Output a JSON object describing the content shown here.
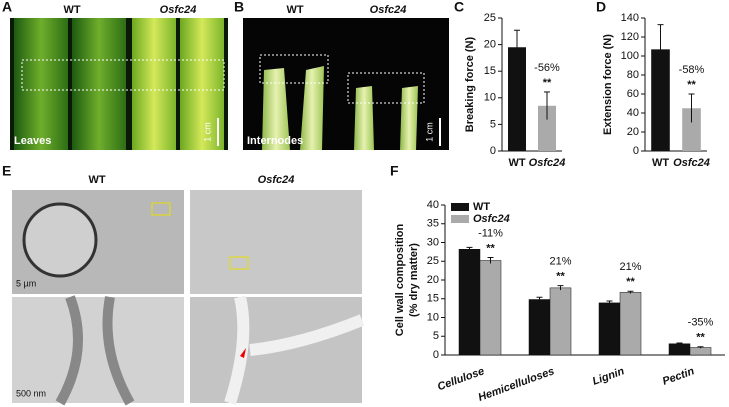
{
  "panel_labels": [
    "A",
    "B",
    "C",
    "D",
    "E",
    "F"
  ],
  "images": {
    "A": {
      "genotypes": [
        "WT",
        "Osfc24"
      ],
      "caption": "Leaves",
      "scale": "1 cm"
    },
    "B": {
      "genotypes": [
        "WT",
        "Osfc24"
      ],
      "caption": "Internodes",
      "scale": "1 cm"
    },
    "E": {
      "genotypes": [
        "WT",
        "Osfc24"
      ],
      "scales": [
        "5 µm",
        "500 nm"
      ]
    }
  },
  "chart_data": [
    {
      "type": "bar",
      "ylabel": "Breaking force (N)",
      "categories": [
        "WT",
        "Osfc24"
      ],
      "values": [
        19.5,
        8.5
      ],
      "errors": [
        3.2,
        2.6
      ],
      "colors": [
        "#111111",
        "#aaaaaa"
      ],
      "ylim": [
        0,
        25
      ],
      "yticks": [
        0,
        5,
        10,
        15,
        20,
        25
      ],
      "change_labels": [
        null,
        "-56%"
      ],
      "significance": [
        null,
        "**"
      ]
    },
    {
      "type": "bar",
      "ylabel": "Extension force (N)",
      "categories": [
        "WT",
        "Osfc24"
      ],
      "values": [
        107,
        45
      ],
      "errors": [
        26,
        15
      ],
      "colors": [
        "#111111",
        "#aaaaaa"
      ],
      "ylim": [
        0,
        140
      ],
      "yticks": [
        0,
        20,
        40,
        60,
        80,
        100,
        120,
        140
      ],
      "change_labels": [
        null,
        "-58%"
      ],
      "significance": [
        null,
        "**"
      ]
    },
    {
      "type": "bar",
      "ylabel": [
        "Cell wall composition",
        "(% dry matter)"
      ],
      "categories": [
        "Cellulose",
        "Hemicelluloses",
        "Lignin",
        "Pectin"
      ],
      "series": [
        {
          "name": "WT",
          "color": "#111111",
          "values": [
            28.2,
            14.8,
            13.9,
            3.0
          ],
          "errors": [
            0.5,
            0.6,
            0.5,
            0.2
          ]
        },
        {
          "name": "Osfc24",
          "color": "#aaaaaa",
          "values": [
            25.2,
            17.9,
            16.7,
            2.0
          ],
          "errors": [
            0.8,
            0.6,
            0.3,
            0.2
          ]
        }
      ],
      "ylim": [
        0,
        40
      ],
      "yticks": [
        0,
        5,
        10,
        15,
        20,
        25,
        30,
        35,
        40
      ],
      "legend": "upper left",
      "change_labels": [
        "-11%",
        "21%",
        "21%",
        "-35%"
      ],
      "significance": [
        "**",
        "**",
        "**",
        "**"
      ]
    }
  ]
}
